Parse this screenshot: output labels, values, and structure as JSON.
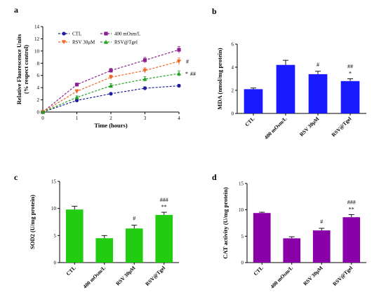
{
  "chart_data": [
    {
      "panel": "a",
      "type": "line",
      "xlabel": "Time (hours)",
      "ylabel": "Relative Fluorescence Units (% respect control)",
      "xlim": [
        0,
        4
      ],
      "ylim": [
        0,
        14
      ],
      "xticks": [
        0,
        1,
        2,
        3,
        4
      ],
      "yticks": [
        0,
        2,
        4,
        6,
        8,
        10,
        12,
        14
      ],
      "legend_position": "top-left",
      "x": [
        0,
        1,
        2,
        3,
        4
      ],
      "series": [
        {
          "name": "CTL",
          "color": "#1f1f9a",
          "marker": "circle",
          "values": [
            0,
            1.9,
            3.0,
            3.9,
            4.3
          ],
          "errors": [
            0.05,
            0.15,
            0.15,
            0.25,
            0.25
          ]
        },
        {
          "name": "400 mOsm/L",
          "color": "#8b1f8f",
          "marker": "square",
          "values": [
            0,
            4.5,
            6.8,
            8.5,
            10.2
          ],
          "errors": [
            0.05,
            0.2,
            0.35,
            0.45,
            0.55
          ]
        },
        {
          "name": "RSV 30μM",
          "color": "#f26522",
          "marker": "triangle-down",
          "values": [
            0,
            3.4,
            5.7,
            6.8,
            8.3
          ],
          "errors": [
            0.05,
            0.25,
            0.35,
            0.45,
            0.55
          ]
        },
        {
          "name": "RSV@Tgel",
          "color": "#22a022",
          "marker": "triangle-up",
          "values": [
            0,
            2.4,
            4.3,
            5.4,
            6.3
          ],
          "errors": [
            0.05,
            0.25,
            0.35,
            0.4,
            0.45
          ]
        }
      ],
      "annotations": [
        {
          "text": "#",
          "series": 2
        },
        {
          "text": "*",
          "series": 3
        },
        {
          "text": "##",
          "series": 3
        }
      ]
    },
    {
      "panel": "b",
      "type": "bar",
      "ylabel": "MDA (nmol/mg protein)",
      "ylim": [
        0,
        6
      ],
      "yticks": [
        0,
        2,
        4,
        6
      ],
      "color": "#1a1aff",
      "categories": [
        "CTL",
        "400 mOsm/L",
        "RSV 30μM",
        "RSV@Tgel"
      ],
      "values": [
        2.1,
        4.2,
        3.4,
        2.8
      ],
      "errors": [
        0.1,
        0.4,
        0.25,
        0.2
      ],
      "annotations": [
        [
          "",
          ""
        ],
        [
          "",
          ""
        ],
        [
          "#",
          ""
        ],
        [
          "##",
          "*"
        ]
      ]
    },
    {
      "panel": "c",
      "type": "bar",
      "ylabel": "SOD2 (U/mg protein)",
      "ylim": [
        0,
        15
      ],
      "yticks": [
        0,
        5,
        10,
        15
      ],
      "color": "#22cc11",
      "categories": [
        "CTL",
        "400 mOsm/L",
        "RSV 30μM",
        "RSV@Tgel"
      ],
      "values": [
        9.8,
        4.5,
        6.3,
        8.8
      ],
      "errors": [
        0.6,
        0.5,
        0.6,
        0.5
      ],
      "annotations": [
        [
          "",
          ""
        ],
        [
          "",
          ""
        ],
        [
          "#",
          ""
        ],
        [
          "###",
          "**"
        ]
      ]
    },
    {
      "panel": "d",
      "type": "bar",
      "ylabel": "CAT activity (U/mg protein)",
      "ylim": [
        0,
        15
      ],
      "yticks": [
        0,
        5,
        10,
        15
      ],
      "color": "#8a00a8",
      "categories": [
        "CTL",
        "400 mOsm/L",
        "RSV 30μM",
        "RSV@Tgel"
      ],
      "values": [
        9.4,
        4.6,
        6.1,
        8.6
      ],
      "errors": [
        0.15,
        0.3,
        0.4,
        0.5
      ],
      "annotations": [
        [
          "",
          ""
        ],
        [
          "",
          ""
        ],
        [
          "#",
          ""
        ],
        [
          "###",
          "**"
        ]
      ]
    }
  ]
}
